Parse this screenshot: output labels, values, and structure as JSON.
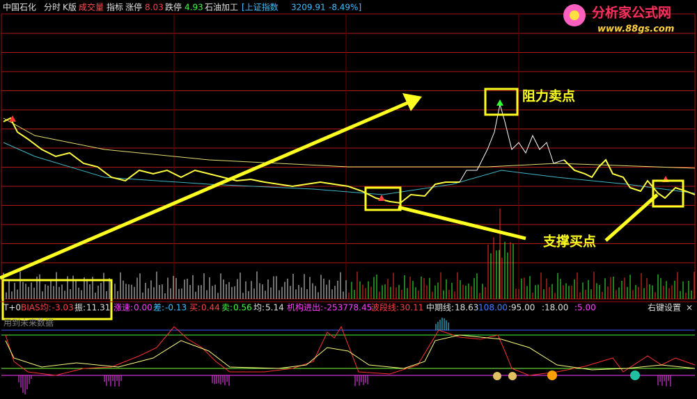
{
  "header": {
    "stock": "中国石化",
    "tabs": [
      "分时",
      "K版",
      "成交量",
      "指标"
    ],
    "limit_up_label": "涨停",
    "limit_up": "8.03",
    "limit_down_label": "跌停",
    "limit_down": "4.93",
    "industry": "石油加工",
    "index_name": "[上证指数",
    "index_value": "3209.91",
    "index_change": "-8.49%]"
  },
  "logo": {
    "name": "分析家公式网",
    "url": "www.88gs.com"
  },
  "annotations": {
    "resistance": "阻力卖点",
    "support": "支撑买点"
  },
  "indicator_bar": {
    "mode": "T+0",
    "items": [
      {
        "label": "BIAS均:",
        "value": "-3.03"
      },
      {
        "label": "振:",
        "value": "11.31"
      },
      {
        "label": "涨速:",
        "value": "0.00"
      },
      {
        "label": "差:",
        "value": "-0.13"
      },
      {
        "label": "买:",
        "value": "0.44"
      },
      {
        "label": "卖:",
        "value": "0.56"
      },
      {
        "label": "均:",
        "value": "5.14"
      },
      {
        "label": "机构进出:",
        "value": "-253778.45"
      },
      {
        "label": "波段线:",
        "value": "30.11"
      },
      {
        "label": "中期线:",
        "value": "18.63"
      }
    ],
    "levels": [
      ":108.00",
      ":95.00",
      ":18.00",
      ":5.00"
    ],
    "settings": "右键设置",
    "close": "×"
  },
  "indicator_note": "用到未来数据"
}
